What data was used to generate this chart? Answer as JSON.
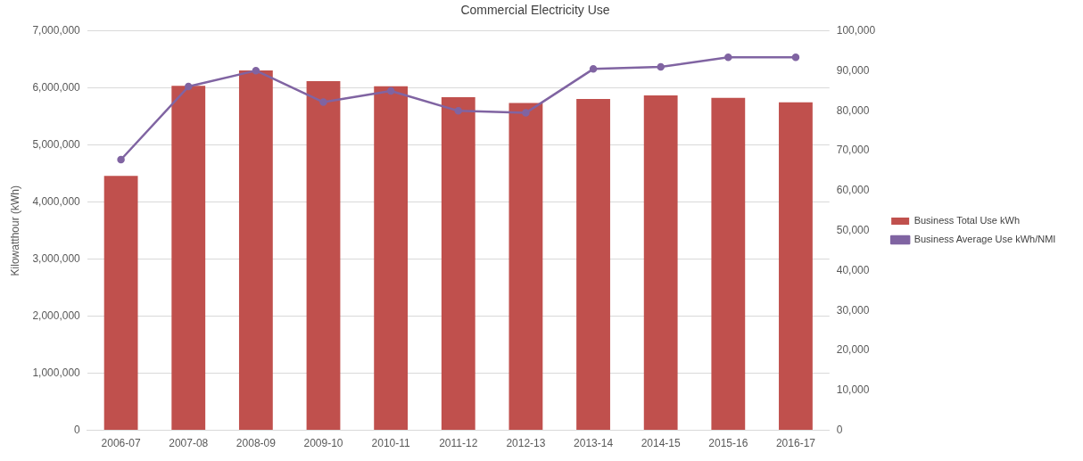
{
  "chart_data": {
    "type": "bar",
    "title": "Commercial Electricity Use",
    "ylabel": "Kilowatthour (kWh)",
    "categories": [
      "2006-07",
      "2007-08",
      "2008-09",
      "2009-10",
      "2010-11",
      "2011-12",
      "2012-13",
      "2013-14",
      "2014-15",
      "2015-16",
      "2016-17"
    ],
    "series": [
      {
        "name": "Business Total Use kWh",
        "color": "#c0504d",
        "values": [
          4460000,
          6040000,
          6310000,
          6120000,
          6030000,
          5840000,
          5740000,
          5810000,
          5870000,
          5830000,
          5750000
        ]
      },
      {
        "name": "Business Average Use kWh/NMI",
        "type": "line",
        "axis": "y2",
        "color": "#8064a2",
        "values": [
          67800,
          86100,
          90100,
          82200,
          85000,
          80000,
          79500,
          90500,
          91000,
          93400,
          93400
        ]
      }
    ],
    "ylim": [
      0,
      7000000
    ],
    "yticks": [
      0,
      {
        "value": 1000000,
        "label": "1,000,000"
      },
      {
        "value": 2000000,
        "label": "2,000,000"
      },
      {
        "value": 3000000,
        "label": "3,000,000"
      },
      {
        "value": 4000000,
        "label": "4,000,000"
      },
      {
        "value": 5000000,
        "label": "5,000,000"
      },
      {
        "value": 6000000,
        "label": "6,000,000"
      },
      {
        "value": 7000000,
        "label": "7,000,000"
      }
    ],
    "y2lim": [
      0,
      100000
    ],
    "y2ticks": [
      0,
      {
        "value": 10000,
        "label": "10,000"
      },
      {
        "value": 20000,
        "label": "20,000"
      },
      {
        "value": 30000,
        "label": "30,000"
      },
      {
        "value": 40000,
        "label": "40,000"
      },
      {
        "value": 50000,
        "label": "50,000"
      },
      {
        "value": 60000,
        "label": "60,000"
      },
      {
        "value": 70000,
        "label": "70,000"
      },
      {
        "value": 80000,
        "label": "80,000"
      },
      {
        "value": 90000,
        "label": "90,000"
      },
      {
        "value": 100000,
        "label": "100,000"
      }
    ],
    "grid": "y",
    "legend": "right",
    "marker": "circle",
    "line_style": "solid"
  }
}
